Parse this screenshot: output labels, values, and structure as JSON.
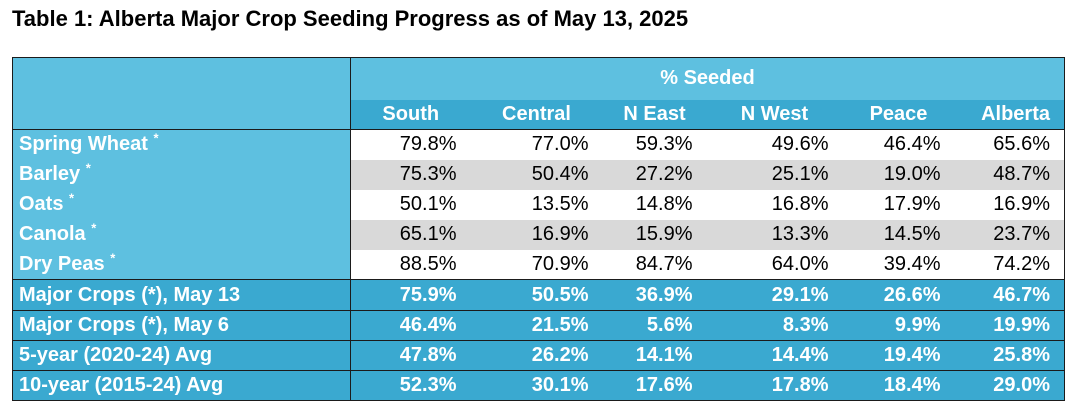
{
  "title": "Table 1: Alberta Major Crop Seeding Progress as of May 13, 2025",
  "group_header": "% Seeded",
  "columns": [
    "South",
    "Central",
    "N East",
    "N West",
    "Peace",
    "Alberta"
  ],
  "crop_rows": [
    {
      "label": "Spring Wheat",
      "mark": "*",
      "values": [
        "79.8%",
        "77.0%",
        "59.3%",
        "49.6%",
        "46.4%",
        "65.6%"
      ]
    },
    {
      "label": "Barley",
      "mark": "*",
      "values": [
        "75.3%",
        "50.4%",
        "27.2%",
        "25.1%",
        "19.0%",
        "48.7%"
      ]
    },
    {
      "label": "Oats",
      "mark": "*",
      "values": [
        "50.1%",
        "13.5%",
        "14.8%",
        "16.8%",
        "17.9%",
        "16.9%"
      ]
    },
    {
      "label": "Canola",
      "mark": "*",
      "values": [
        "65.1%",
        "16.9%",
        "15.9%",
        "13.3%",
        "14.5%",
        "23.7%"
      ]
    },
    {
      "label": "Dry Peas",
      "mark": "*",
      "values": [
        "88.5%",
        "70.9%",
        "84.7%",
        "64.0%",
        "39.4%",
        "74.2%"
      ]
    }
  ],
  "summary_rows": [
    {
      "label": "Major Crops (*), May 13",
      "values": [
        "75.9%",
        "50.5%",
        "36.9%",
        "29.1%",
        "26.6%",
        "46.7%"
      ]
    },
    {
      "label": "Major Crops (*), May 6",
      "values": [
        "46.4%",
        "21.5%",
        "5.6%",
        "8.3%",
        "9.9%",
        "19.9%"
      ]
    },
    {
      "label": "5-year (2020-24) Avg",
      "values": [
        "47.8%",
        "26.2%",
        "14.1%",
        "14.4%",
        "19.4%",
        "25.8%"
      ]
    },
    {
      "label": "10-year (2015-24) Avg",
      "values": [
        "52.3%",
        "30.1%",
        "17.6%",
        "17.8%",
        "18.4%",
        "29.0%"
      ]
    }
  ],
  "colors": {
    "header_blue": "#5ec0e0",
    "dark_blue": "#3aa9d0",
    "grey_band": "#d9d9d9"
  }
}
